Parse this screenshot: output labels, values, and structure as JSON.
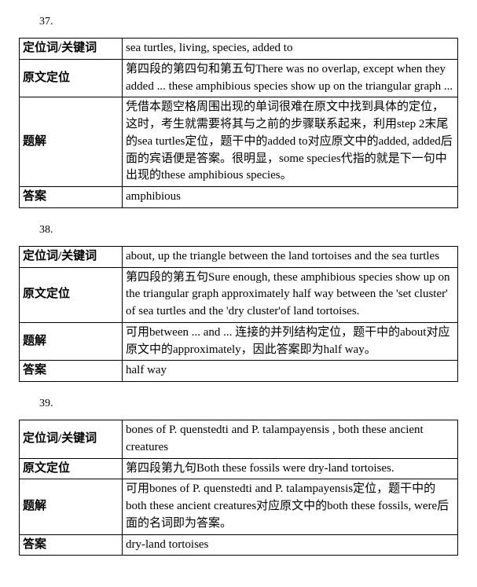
{
  "sections": [
    {
      "number": "37.",
      "rows": {
        "keywords_label": "定位词/关键词",
        "keywords": "sea turtles, living, species, added to",
        "locate_label": "原文定位",
        "locate": "第四段的第四句和第五句There was no overlap, except when they added ... these amphibious species show up on the triangular graph ...",
        "explain_label": "题解",
        "explain": "凭借本题空格周围出现的单词很难在原文中找到具体的定位，这时，考生就需要将其与之前的步骤联系起来，利用step 2末尾的sea turtles定位，题干中的added to对应原文中的added, added后面的宾语便是答案。很明显，some species代指的就是下一句中出现的these amphibious species。",
        "answer_label": "答案",
        "answer": "amphibious"
      }
    },
    {
      "number": "38.",
      "rows": {
        "keywords_label": "定位词/关键词",
        "keywords": "about, up the triangle between the land tortoises and the sea turtles",
        "locate_label": "原文定位",
        "locate": "第四段的第五句Sure enough, these amphibious species show up on the triangular graph approximately half way between the 'set cluster' of sea turtles and the 'dry cluster'of land tortoises.",
        "explain_label": "题解",
        "explain": "可用between ... and ... 连接的并列结构定位，题干中的about对应原文中的approximately，因此答案即为half way。",
        "answer_label": "答案",
        "answer": "half way"
      }
    },
    {
      "number": "39.",
      "rows": {
        "keywords_label": "定位词/关键词",
        "keywords": "bones of P. quenstedti and P. talampayensis , both these ancient creatures",
        "locate_label": "原文定位",
        "locate": "第四段第九句Both these fossils were dry-land tortoises.",
        "explain_label": "题解",
        "explain": "可用bones of P. quenstedti and P. talampayensis定位，题干中的both these ancient creatures对应原文中的both these fossils, were后面的名词即为答案。",
        "answer_label": "答案",
        "answer": "dry-land tortoises"
      }
    }
  ]
}
